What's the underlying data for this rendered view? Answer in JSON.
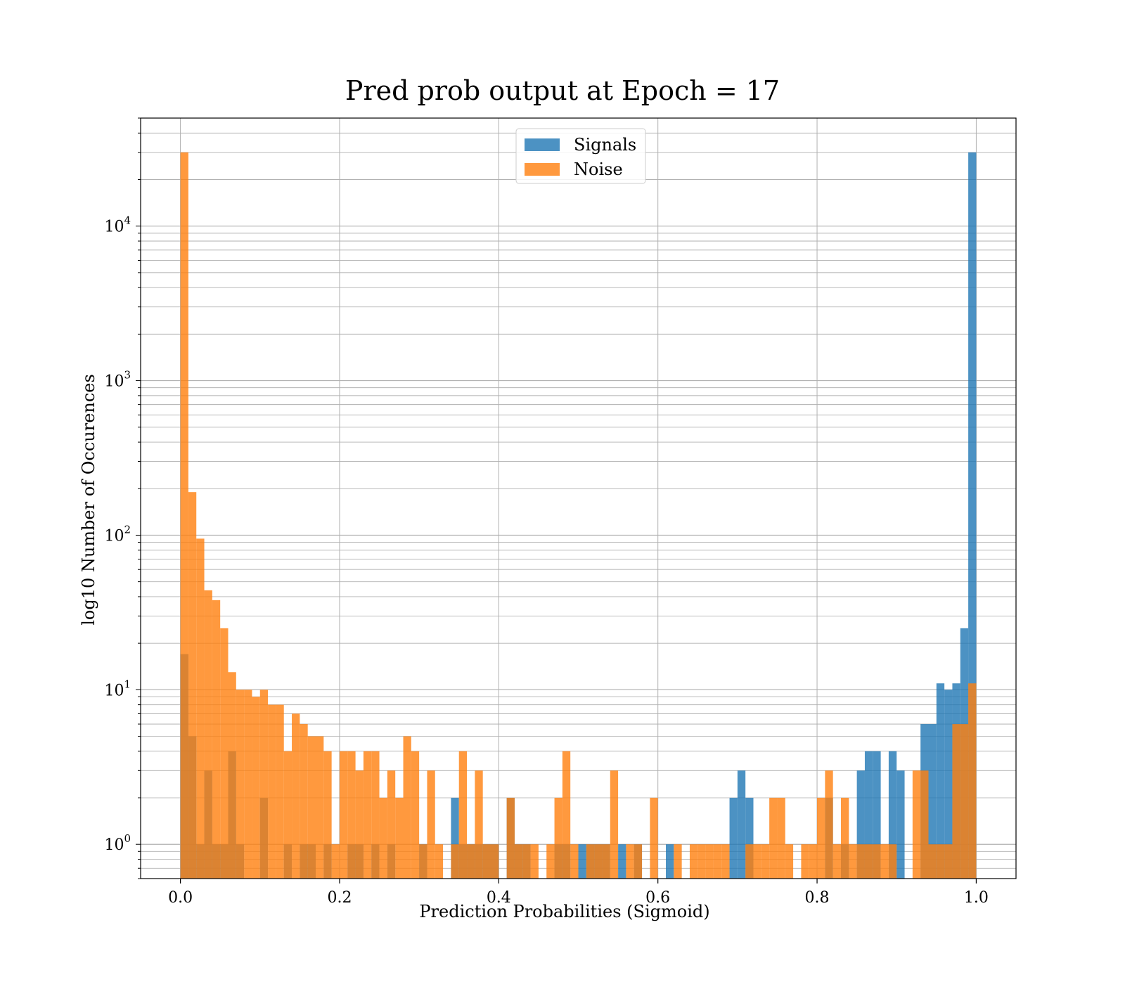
{
  "chart_data": {
    "type": "bar",
    "title": "Pred prob output at Epoch = 17",
    "xlabel": "Prediction Probabilities (Sigmoid)",
    "ylabel": "log10 Number of Occurences",
    "yscale": "log",
    "xlim": [
      -0.05,
      1.05
    ],
    "ylim": [
      0.6,
      50000
    ],
    "xticks": [
      0.0,
      0.2,
      0.4,
      0.6,
      0.8,
      1.0
    ],
    "xtick_labels": [
      "0.0",
      "0.2",
      "0.4",
      "0.6",
      "0.8",
      "1.0"
    ],
    "yticks": [
      1,
      10,
      100,
      1000,
      10000
    ],
    "ytick_labels": [
      {
        "base": "10",
        "exp": "0"
      },
      {
        "base": "10",
        "exp": "1"
      },
      {
        "base": "10",
        "exp": "2"
      },
      {
        "base": "10",
        "exp": "3"
      },
      {
        "base": "10",
        "exp": "4"
      }
    ],
    "grid": true,
    "legend_position": "upper-center",
    "bins": {
      "start": 0.0,
      "end": 1.0,
      "count": 100
    },
    "series": [
      {
        "name": "Signals",
        "color": "#1f77b4",
        "counts": [
          17,
          5,
          1,
          3,
          1,
          1,
          4,
          1,
          0,
          0,
          2,
          0,
          0,
          1,
          0,
          1,
          1,
          0,
          1,
          0,
          0,
          1,
          1,
          0,
          1,
          0,
          1,
          0,
          0,
          0,
          1,
          0,
          0,
          0,
          2,
          1,
          1,
          1,
          1,
          1,
          0,
          2,
          1,
          1,
          0,
          0,
          0,
          1,
          1,
          0,
          1,
          1,
          1,
          1,
          0,
          1,
          0,
          1,
          0,
          0,
          0,
          1,
          0,
          0,
          0,
          0,
          0,
          0,
          0,
          2,
          3,
          2,
          0,
          0,
          0,
          0,
          0,
          0,
          0,
          0,
          0,
          2,
          0,
          1,
          0,
          3,
          4,
          4,
          0,
          4,
          3,
          0,
          0,
          6,
          6,
          11,
          10,
          11,
          25,
          30000
        ]
      },
      {
        "name": "Noise",
        "color": "#ff7f0e",
        "counts": [
          30000,
          190,
          95,
          44,
          38,
          25,
          13,
          10,
          10,
          9,
          10,
          8,
          8,
          4,
          7,
          6,
          5,
          5,
          4,
          1,
          4,
          4,
          3,
          4,
          4,
          2,
          3,
          2,
          5,
          4,
          1,
          3,
          1,
          0,
          1,
          4,
          1,
          3,
          1,
          1,
          0,
          2,
          1,
          1,
          1,
          0,
          1,
          2,
          4,
          1,
          0,
          1,
          1,
          1,
          3,
          0,
          1,
          1,
          0,
          2,
          0,
          0,
          1,
          0,
          1,
          1,
          1,
          1,
          1,
          0,
          0,
          1,
          1,
          1,
          2,
          2,
          1,
          0,
          1,
          1,
          2,
          3,
          1,
          2,
          1,
          1,
          1,
          1,
          1,
          1,
          0,
          0,
          3,
          3,
          1,
          1,
          1,
          6,
          6,
          11
        ]
      }
    ]
  }
}
